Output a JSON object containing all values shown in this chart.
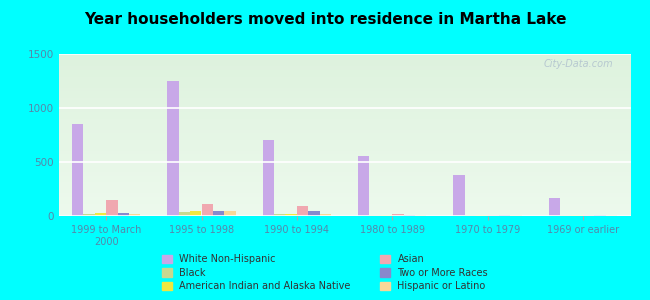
{
  "title": "Year householders moved into residence in Martha Lake",
  "title_fontsize": 11,
  "background_outer": "#00FFFF",
  "categories": [
    "1999 to March\n2000",
    "1995 to 1998",
    "1990 to 1994",
    "1980 to 1989",
    "1970 to 1979",
    "1969 or earlier"
  ],
  "series": {
    "White Non-Hispanic": [
      850,
      1250,
      700,
      560,
      380,
      170
    ],
    "Black": [
      20,
      40,
      15,
      8,
      5,
      5
    ],
    "American Indian and Alaska Native": [
      30,
      45,
      15,
      10,
      5,
      5
    ],
    "Asian": [
      150,
      110,
      90,
      15,
      5,
      10
    ],
    "Two or More Races": [
      30,
      50,
      50,
      10,
      5,
      5
    ],
    "Hispanic or Latino": [
      20,
      45,
      20,
      10,
      5,
      5
    ]
  },
  "colors": {
    "White Non-Hispanic": "#c8a8e8",
    "Black": "#c8d890",
    "American Indian and Alaska Native": "#f0e840",
    "Asian": "#f0a8b0",
    "Two or More Races": "#8888cc",
    "Hispanic or Latino": "#f8d898"
  },
  "ylim": [
    0,
    1500
  ],
  "yticks": [
    0,
    500,
    1000,
    1500
  ],
  "bar_width": 0.12,
  "watermark": "City-Data.com",
  "plot_bg_top": "#ddeedd",
  "plot_bg_bottom": "#eef5ee",
  "legend_order": [
    "White Non-Hispanic",
    "Black",
    "American Indian and Alaska Native",
    "Asian",
    "Two or More Races",
    "Hispanic or Latino"
  ]
}
